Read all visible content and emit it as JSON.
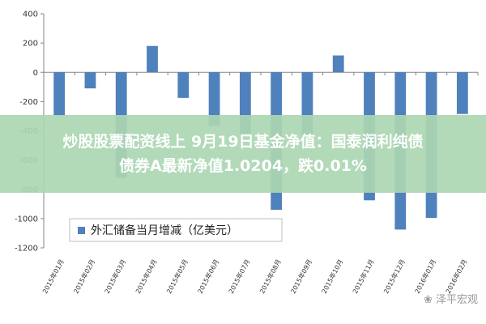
{
  "chart_data": {
    "type": "bar",
    "categories": [
      "2015年01月",
      "2015年02月",
      "2015年03月",
      "2015年04月",
      "2015年05月",
      "2015年06月",
      "2015年07月",
      "2015年08月",
      "2015年09月",
      "2015年10月",
      "2015年11月",
      "2015年12月",
      "2016年01月",
      "2016年02月"
    ],
    "series": [
      {
        "name": "外汇储备当月增减（亿美元）",
        "values": [
          -295,
          -110,
          -720,
          180,
          -175,
          -365,
          -420,
          -940,
          -430,
          115,
          -875,
          -1075,
          -995,
          -285
        ]
      }
    ],
    "ylim": [
      -1200,
      400
    ],
    "yticks": [
      400,
      200,
      0,
      -200,
      -400,
      -600,
      -800,
      -1000,
      -1200
    ],
    "ytick_labels": [
      "400",
      "200",
      "0",
      "-200",
      "-400",
      "-600",
      "-800",
      "-1000",
      "-1200"
    ],
    "legend_position": "bottom-left",
    "grid": false,
    "colors": {
      "bar": "#4f81bd",
      "axis": "#868686",
      "legend_border": "#bfbfbf"
    }
  },
  "overlay": {
    "line1": "炒股股票配资线上 9月19日基金净值：国泰润利纯债",
    "line2": "债券A最新净值1.0204，跌0.01%"
  },
  "watermark": "泽平宏观"
}
